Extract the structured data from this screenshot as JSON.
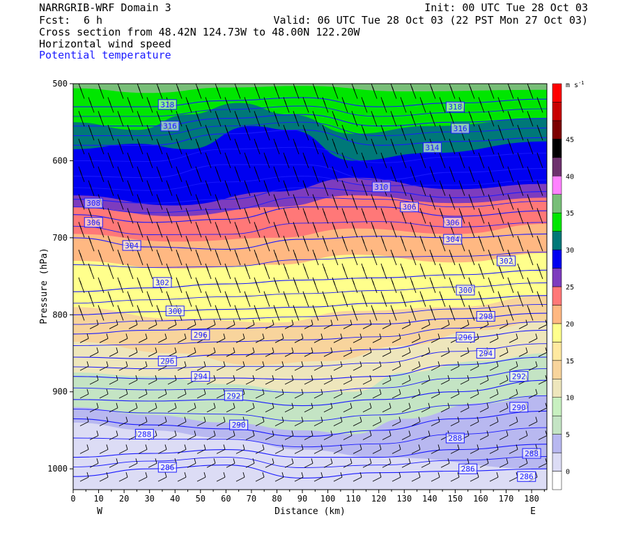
{
  "header": {
    "model": "NARRGRIB-WRF Domain 3",
    "init": "Init: 00 UTC Tue 28 Oct 03",
    "fcst_label": "Fcst:",
    "fcst_value": "6 h",
    "valid": "Valid: 06 UTC Tue 28 Oct 03 (22 PST Mon 27 Oct 03)",
    "cross_section": "Cross section from 48.42N 124.73W to 48.00N 122.20W",
    "field1": "Horizontal wind speed",
    "field2": "Potential temperature"
  },
  "colors": {
    "theta_contour": "#1a1aff",
    "barb": "#000000"
  },
  "chart_data": {
    "type": "heatmap",
    "xlabel": "Distance (km)",
    "ylabel": "Pressure (hPa)",
    "xlim": [
      0,
      186
    ],
    "ylim": [
      1027,
      500
    ],
    "x_ticks": [
      0,
      10,
      20,
      30,
      40,
      50,
      60,
      70,
      80,
      90,
      100,
      110,
      120,
      130,
      140,
      150,
      160,
      170,
      180
    ],
    "y_ticks": [
      500,
      600,
      700,
      800,
      900,
      1000
    ],
    "x_endpoints": {
      "left": "W",
      "right": "E"
    },
    "colorbar": {
      "units": "m s",
      "units_exp": "-1",
      "tick_labels": [
        "0",
        "5",
        "10",
        "15",
        "20",
        "25",
        "30",
        "35",
        "40",
        "45"
      ],
      "bins": [
        {
          "from": 0,
          "to": 2.5,
          "color": "#ffffff"
        },
        {
          "from": 2.5,
          "to": 5,
          "color": "#dcdcf5"
        },
        {
          "from": 5,
          "to": 7.5,
          "color": "#b8b8f0"
        },
        {
          "from": 7.5,
          "to": 10,
          "color": "#c4e4c4"
        },
        {
          "from": 10,
          "to": 12.5,
          "color": "#c8f0c0"
        },
        {
          "from": 12.5,
          "to": 15,
          "color": "#eee6bc"
        },
        {
          "from": 15,
          "to": 17.5,
          "color": "#f8d49c"
        },
        {
          "from": 17.5,
          "to": 20,
          "color": "#ffe9a0"
        },
        {
          "from": 20,
          "to": 22.5,
          "color": "#ffff8c"
        },
        {
          "from": 22.5,
          "to": 25,
          "color": "#ffb882"
        },
        {
          "from": 25,
          "to": 27.5,
          "color": "#ff7878"
        },
        {
          "from": 27.5,
          "to": 30,
          "color": "#7d3cbe"
        },
        {
          "from": 30,
          "to": 32.5,
          "color": "#0000f0"
        },
        {
          "from": 32.5,
          "to": 35,
          "color": "#007878"
        },
        {
          "from": 35,
          "to": 37.5,
          "color": "#00e600"
        },
        {
          "from": 37.5,
          "to": 40,
          "color": "#78be78"
        },
        {
          "from": 40,
          "to": 42.5,
          "color": "#ff82ff"
        },
        {
          "from": 42.5,
          "to": 45,
          "color": "#6e326e"
        },
        {
          "from": 45,
          "to": 47.5,
          "color": "#000000"
        },
        {
          "from": 47.5,
          "to": 50,
          "color": "#7d0000"
        },
        {
          "from": 50,
          "to": 52.5,
          "color": "#c80000"
        },
        {
          "from": 52.5,
          "to": 55,
          "color": "#ff0000"
        }
      ]
    },
    "speed_layers": [
      {
        "bin": 1,
        "top": [
          [
            0,
            940
          ],
          [
            30,
            950
          ],
          [
            60,
            960
          ],
          [
            90,
            975
          ],
          [
            120,
            985
          ],
          [
            186,
            1000
          ]
        ]
      },
      {
        "bin": 2,
        "top": [
          [
            0,
            920
          ],
          [
            30,
            930
          ],
          [
            60,
            940
          ],
          [
            90,
            950
          ],
          [
            110,
            955
          ],
          [
            130,
            935
          ],
          [
            160,
            915
          ],
          [
            186,
            905
          ]
        ]
      },
      {
        "bin": 3,
        "top": [
          [
            0,
            875
          ],
          [
            30,
            880
          ],
          [
            60,
            890
          ],
          [
            90,
            900
          ],
          [
            110,
            900
          ],
          [
            130,
            875
          ],
          [
            160,
            860
          ],
          [
            186,
            850
          ]
        ]
      },
      {
        "bin": 5,
        "top": [
          [
            0,
            835
          ],
          [
            40,
            850
          ],
          [
            70,
            865
          ],
          [
            100,
            860
          ],
          [
            130,
            840
          ],
          [
            160,
            820
          ],
          [
            186,
            808
          ]
        ]
      },
      {
        "bin": 6,
        "top": [
          [
            0,
            790
          ],
          [
            40,
            805
          ],
          [
            80,
            810
          ],
          [
            110,
            795
          ],
          [
            150,
            790
          ],
          [
            186,
            775
          ]
        ]
      },
      {
        "bin": 8,
        "top": [
          [
            0,
            730
          ],
          [
            40,
            740
          ],
          [
            80,
            735
          ],
          [
            110,
            722
          ],
          [
            150,
            732
          ],
          [
            186,
            720
          ]
        ]
      },
      {
        "bin": 9,
        "top": [
          [
            0,
            695
          ],
          [
            40,
            705
          ],
          [
            80,
            700
          ],
          [
            110,
            688
          ],
          [
            150,
            695
          ],
          [
            186,
            682
          ]
        ]
      },
      {
        "bin": 10,
        "top": [
          [
            0,
            660
          ],
          [
            40,
            672
          ],
          [
            80,
            660
          ],
          [
            110,
            645
          ],
          [
            150,
            655
          ],
          [
            186,
            648
          ]
        ]
      },
      {
        "bin": 11,
        "top": [
          [
            0,
            645
          ],
          [
            40,
            658
          ],
          [
            80,
            640
          ],
          [
            110,
            622
          ],
          [
            150,
            637
          ],
          [
            186,
            630
          ]
        ]
      },
      {
        "bin": 12,
        "top": [
          [
            0,
            585
          ],
          [
            25,
            578
          ],
          [
            45,
            585
          ],
          [
            70,
            555
          ],
          [
            85,
            560
          ],
          [
            110,
            600
          ],
          [
            140,
            590
          ],
          [
            186,
            575
          ]
        ]
      },
      {
        "bin": 13,
        "top": [
          [
            0,
            550
          ],
          [
            25,
            560
          ],
          [
            45,
            540
          ],
          [
            65,
            525
          ],
          [
            85,
            540
          ],
          [
            110,
            565
          ],
          [
            140,
            555
          ],
          [
            186,
            545
          ]
        ]
      },
      {
        "bin": 14,
        "top": [
          [
            0,
            506
          ],
          [
            30,
            512
          ],
          [
            60,
            505
          ],
          [
            90,
            503
          ],
          [
            130,
            510
          ],
          [
            186,
            508
          ]
        ]
      },
      {
        "bin": 15,
        "top": [
          [
            0,
            500
          ],
          [
            186,
            500
          ]
        ]
      }
    ],
    "isentropes": [
      {
        "theta": 286,
        "label_x": 37,
        "p": [
          [
            0,
            1010
          ],
          [
            30,
            1000
          ],
          [
            60,
            995
          ],
          [
            90,
            1012
          ],
          [
            120,
            1005
          ],
          [
            150,
            1003
          ],
          [
            186,
            1000
          ]
        ]
      },
      {
        "theta": 288,
        "label_x": 155,
        "p": [
          [
            0,
            985
          ],
          [
            30,
            980
          ],
          [
            60,
            975
          ],
          [
            90,
            985
          ],
          [
            120,
            985
          ],
          [
            150,
            975
          ],
          [
            186,
            968
          ]
        ]
      },
      {
        "theta": 290,
        "label_x": 65,
        "p": [
          [
            0,
            935
          ],
          [
            30,
            943
          ],
          [
            60,
            948
          ],
          [
            90,
            958
          ],
          [
            120,
            950
          ],
          [
            150,
            935
          ],
          [
            186,
            925
          ]
        ]
      },
      {
        "theta": 292,
        "label_x": 63,
        "p": [
          [
            0,
            910
          ],
          [
            30,
            912
          ],
          [
            60,
            910
          ],
          [
            90,
            918
          ],
          [
            120,
            910
          ],
          [
            150,
            900
          ],
          [
            186,
            885
          ]
        ]
      },
      {
        "theta": 294,
        "label_x": 50,
        "p": [
          [
            0,
            880
          ],
          [
            30,
            883
          ],
          [
            60,
            882
          ],
          [
            90,
            884
          ],
          [
            120,
            880
          ],
          [
            150,
            865
          ],
          [
            186,
            855
          ]
        ]
      },
      {
        "theta": 296,
        "label_x": 37,
        "p": [
          [
            0,
            855
          ],
          [
            30,
            857
          ],
          [
            60,
            852
          ],
          [
            90,
            850
          ],
          [
            120,
            845
          ],
          [
            150,
            830
          ],
          [
            186,
            820
          ]
        ]
      },
      {
        "theta": 298,
        "label_x": 160,
        "p": [
          [
            0,
            825
          ],
          [
            30,
            820
          ],
          [
            60,
            818
          ],
          [
            90,
            815
          ],
          [
            120,
            812
          ],
          [
            150,
            805
          ],
          [
            186,
            798
          ]
        ]
      },
      {
        "theta": 300,
        "label_x": 40,
        "p": [
          [
            0,
            800
          ],
          [
            30,
            796
          ],
          [
            60,
            793
          ],
          [
            90,
            790
          ],
          [
            120,
            785
          ],
          [
            150,
            780
          ],
          [
            186,
            775
          ]
        ]
      },
      {
        "theta": 302,
        "label_x": 180,
        "p": [
          [
            0,
            770
          ],
          [
            30,
            765
          ],
          [
            60,
            760
          ],
          [
            90,
            755
          ],
          [
            120,
            752
          ],
          [
            150,
            748
          ],
          [
            186,
            742
          ]
        ]
      },
      {
        "theta": 304,
        "label_x": 20,
        "p": [
          [
            0,
            700
          ],
          [
            30,
            712
          ],
          [
            60,
            715
          ],
          [
            90,
            702
          ],
          [
            120,
            698
          ],
          [
            150,
            700
          ],
          [
            186,
            695
          ]
        ]
      },
      {
        "theta": 306,
        "label_x": 10,
        "p": [
          [
            0,
            670
          ],
          [
            30,
            680
          ],
          [
            60,
            676
          ],
          [
            90,
            660
          ],
          [
            120,
            660
          ],
          [
            150,
            672
          ],
          [
            186,
            665
          ]
        ]
      },
      {
        "theta": 308,
        "label_x": 10,
        "p": [
          [
            0,
            650
          ],
          [
            30,
            655
          ],
          [
            60,
            650
          ],
          [
            90,
            635
          ],
          [
            120,
            640
          ],
          [
            150,
            648
          ],
          [
            186,
            640
          ]
        ]
      },
      {
        "theta": 310,
        "label_x": 120,
        "p": [
          [
            0,
            620
          ],
          [
            30,
            622
          ],
          [
            60,
            605
          ],
          [
            90,
            605
          ],
          [
            120,
            625
          ],
          [
            150,
            615
          ],
          [
            186,
            610
          ]
        ]
      },
      {
        "theta": 314,
        "label_x": 140,
        "p": [
          [
            0,
            580
          ],
          [
            30,
            580
          ],
          [
            60,
            565
          ],
          [
            90,
            560
          ],
          [
            120,
            580
          ],
          [
            150,
            575
          ],
          [
            186,
            570
          ]
        ]
      },
      {
        "theta": 316,
        "label_x": 150,
        "p": [
          [
            0,
            555
          ],
          [
            30,
            555
          ],
          [
            60,
            545
          ],
          [
            90,
            540
          ],
          [
            120,
            555
          ],
          [
            150,
            550
          ],
          [
            186,
            545
          ]
        ]
      },
      {
        "theta": 318,
        "label_x": 150,
        "p": [
          [
            0,
            530
          ],
          [
            30,
            530
          ],
          [
            60,
            522
          ],
          [
            90,
            518
          ],
          [
            120,
            530
          ],
          [
            150,
            525
          ],
          [
            186,
            520
          ]
        ]
      }
    ],
    "isentrope_labels": [
      {
        "theta": 286,
        "x": 37,
        "p": 998
      },
      {
        "theta": 286,
        "x": 155,
        "p": 1000
      },
      {
        "theta": 286,
        "x": 178,
        "p": 1010
      },
      {
        "theta": 288,
        "x": 28,
        "p": 955
      },
      {
        "theta": 288,
        "x": 150,
        "p": 960
      },
      {
        "theta": 288,
        "x": 180,
        "p": 980
      },
      {
        "theta": 290,
        "x": 65,
        "p": 943
      },
      {
        "theta": 290,
        "x": 175,
        "p": 920
      },
      {
        "theta": 292,
        "x": 63,
        "p": 905
      },
      {
        "theta": 292,
        "x": 175,
        "p": 880
      },
      {
        "theta": 294,
        "x": 50,
        "p": 880
      },
      {
        "theta": 294,
        "x": 162,
        "p": 850
      },
      {
        "theta": 296,
        "x": 37,
        "p": 860
      },
      {
        "theta": 296,
        "x": 154,
        "p": 829
      },
      {
        "theta": 296,
        "x": 50,
        "p": 826
      },
      {
        "theta": 298,
        "x": 162,
        "p": 802
      },
      {
        "theta": 300,
        "x": 40,
        "p": 795
      },
      {
        "theta": 300,
        "x": 154,
        "p": 768
      },
      {
        "theta": 302,
        "x": 35,
        "p": 758
      },
      {
        "theta": 302,
        "x": 170,
        "p": 730
      },
      {
        "theta": 304,
        "x": 23,
        "p": 710
      },
      {
        "theta": 304,
        "x": 149,
        "p": 702
      },
      {
        "theta": 306,
        "x": 8,
        "p": 680
      },
      {
        "theta": 306,
        "x": 149,
        "p": 680
      },
      {
        "theta": 306,
        "x": 132,
        "p": 660
      },
      {
        "theta": 308,
        "x": 8,
        "p": 655
      },
      {
        "theta": 310,
        "x": 121,
        "p": 634
      },
      {
        "theta": 314,
        "x": 141,
        "p": 583
      },
      {
        "theta": 316,
        "x": 38,
        "p": 555
      },
      {
        "theta": 316,
        "x": 152,
        "p": 558
      },
      {
        "theta": 318,
        "x": 37,
        "p": 527
      },
      {
        "theta": 318,
        "x": 150,
        "p": 530
      }
    ]
  }
}
